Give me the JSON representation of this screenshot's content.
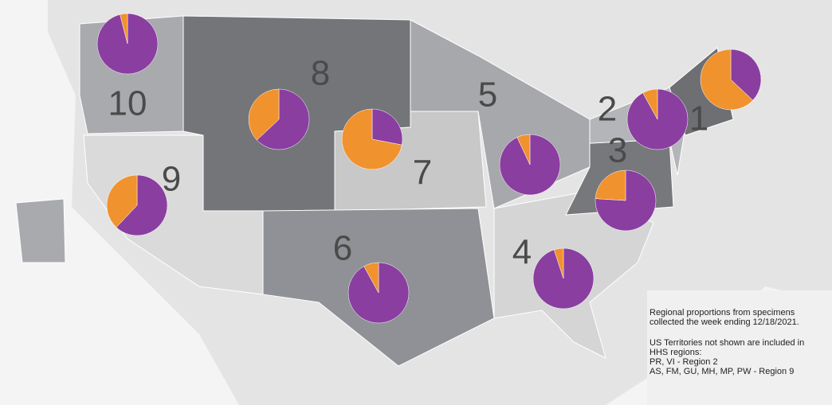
{
  "map": {
    "colors": {
      "purple": "#8a3ea0",
      "orange": "#f0922e"
    },
    "regions": [
      {
        "label": "10",
        "purple": 96,
        "orange": 4
      },
      {
        "label": "8",
        "purple": 63,
        "orange": 37
      },
      {
        "label": "7",
        "purple": 28,
        "orange": 72
      },
      {
        "label": "9",
        "purple": 62,
        "orange": 38
      },
      {
        "label": "5",
        "purple": 93,
        "orange": 7
      },
      {
        "label": "2",
        "purple": 92,
        "orange": 8
      },
      {
        "label": "1",
        "purple": 37,
        "orange": 63
      },
      {
        "label": "3",
        "purple": 76,
        "orange": 24
      },
      {
        "label": "4",
        "purple": 95,
        "orange": 5
      },
      {
        "label": "6",
        "purple": 92,
        "orange": 8
      }
    ],
    "note_paragraphs": [
      [
        "Regional proportions from specimens",
        "collected the week ending 12/18/2021."
      ],
      [
        "US Territories not shown are included in",
        "HHS regions:",
        "PR, VI - Region 2",
        "AS, FM, GU, MH, MP, PW - Region 9"
      ]
    ]
  }
}
